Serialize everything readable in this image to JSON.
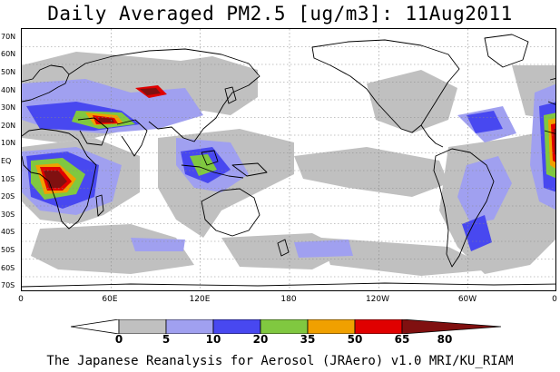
{
  "title": "Daily Averaged PM2.5 [ug/m3]: 11Aug2011",
  "footer": "The Japanese Reanalysis for Aerosol (JRAero) v1.0 MRI/KU_RIAM",
  "lat_labels": [
    "70N",
    "60N",
    "50N",
    "40N",
    "30N",
    "20N",
    "10N",
    "EQ",
    "10S",
    "20S",
    "30S",
    "40S",
    "50S",
    "60S",
    "70S"
  ],
  "lon_labels": [
    "0",
    "60E",
    "120E",
    "180",
    "120W",
    "60W",
    "0"
  ],
  "colorbar": {
    "labels": [
      "0",
      "5",
      "10",
      "20",
      "35",
      "50",
      "65",
      "80"
    ],
    "colors": [
      "#ffffff",
      "#c0c0c0",
      "#a0a0f0",
      "#4848f0",
      "#80c840",
      "#f0a000",
      "#e00000",
      "#801010"
    ]
  },
  "colors": {
    "land_outline": "#000000",
    "grid": "#888888"
  }
}
